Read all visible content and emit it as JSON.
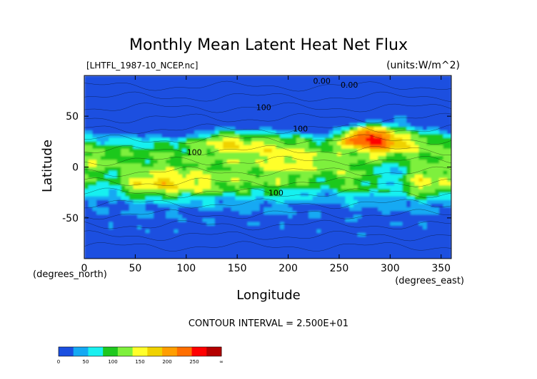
{
  "chart_data": {
    "type": "heatmap",
    "title": "Monthly Mean Latent Heat Net Flux",
    "file_label": "[LHTFL_1987-10_NCEP.nc]",
    "units_label": "(units:W/m^2)",
    "xlabel": "Longitude",
    "ylabel": "Latitude",
    "x_unit_label": "(degrees_east)",
    "y_unit_label": "(degrees_north)",
    "x_ticks": [
      0,
      50,
      100,
      150,
      200,
      250,
      300,
      350
    ],
    "y_ticks": [
      50,
      0,
      -50
    ],
    "xlim": [
      0,
      360
    ],
    "ylim": [
      -90,
      90
    ],
    "contour_interval_text": "CONTOUR INTERVAL = 2.500E+01",
    "contour_labels": [
      "0.00",
      "0.00",
      "100",
      "100",
      "100",
      "100"
    ],
    "colorbar": {
      "ticks": [
        "0",
        "50",
        "100",
        "150",
        "200",
        "250",
        "∞"
      ],
      "colors": [
        "#1a4fe0",
        "#14a9f3",
        "#19f0f0",
        "#1ec81e",
        "#7ef03c",
        "#ffff2a",
        "#f0d200",
        "#ff9e00",
        "#ff6e00",
        "#ff0000",
        "#b40000"
      ]
    },
    "color_scale": [
      {
        "max": 25,
        "color": "#1a4fe0"
      },
      {
        "max": 50,
        "color": "#14a9f3"
      },
      {
        "max": 75,
        "color": "#19f0f0"
      },
      {
        "max": 100,
        "color": "#1ec81e"
      },
      {
        "max": 125,
        "color": "#7ef03c"
      },
      {
        "max": 150,
        "color": "#ffff2a"
      },
      {
        "max": 175,
        "color": "#f0d200"
      },
      {
        "max": 200,
        "color": "#ff9e00"
      },
      {
        "max": 225,
        "color": "#ff6e00"
      },
      {
        "max": 250,
        "color": "#ff0000"
      },
      {
        "max": 9999,
        "color": "#b40000"
      }
    ]
  }
}
